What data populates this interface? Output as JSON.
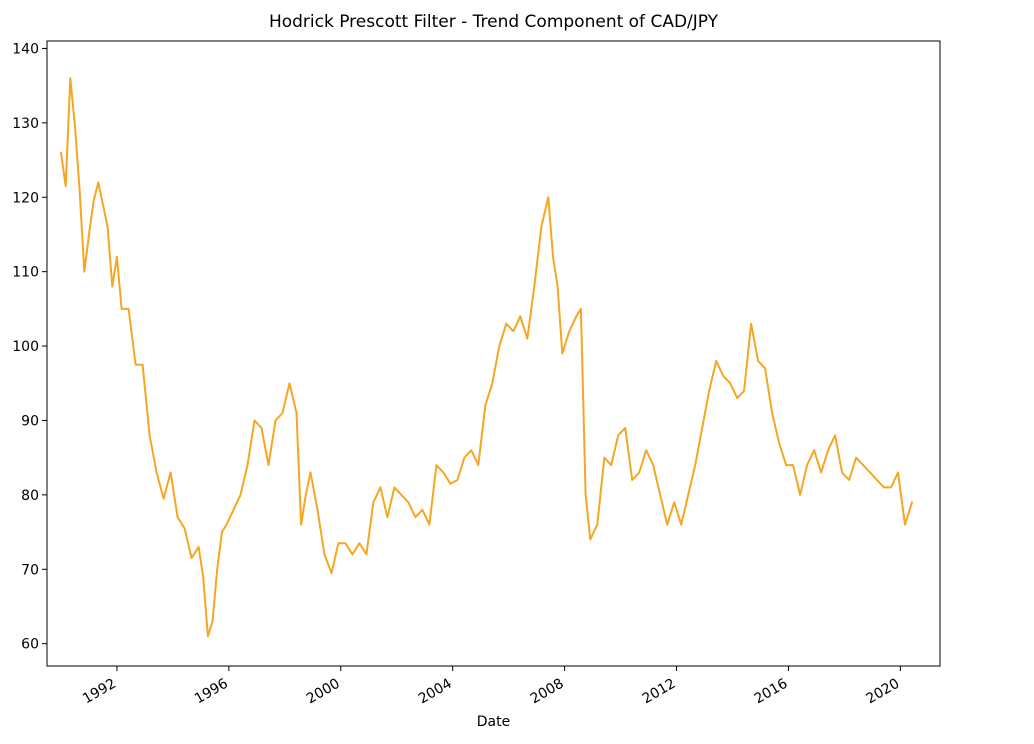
{
  "chart_data": {
    "type": "line",
    "title": "Hodrick Prescott Filter - Trend Component of CAD/JPY",
    "xlabel": "Date",
    "ylabel": "",
    "grid": false,
    "ylim": [
      57,
      141
    ],
    "xlim": [
      "1989-07-01",
      "2021-06-01"
    ],
    "yticks": [
      60,
      70,
      80,
      90,
      100,
      110,
      120,
      130,
      140
    ],
    "xticks": [
      "1992",
      "1996",
      "2000",
      "2004",
      "2008",
      "2012",
      "2016",
      "2020"
    ],
    "series": [
      {
        "color": "#f5a623",
        "x": [
          "1990-01",
          "1990-03",
          "1990-05",
          "1990-07",
          "1990-09",
          "1990-11",
          "1991-01",
          "1991-03",
          "1991-05",
          "1991-07",
          "1991-09",
          "1991-11",
          "1992-01",
          "1992-03",
          "1992-06",
          "1992-09",
          "1992-12",
          "1993-03",
          "1993-06",
          "1993-09",
          "1993-12",
          "1994-03",
          "1994-06",
          "1994-09",
          "1994-12",
          "1995-02",
          "1995-04",
          "1995-06",
          "1995-08",
          "1995-10",
          "1995-12",
          "1996-03",
          "1996-06",
          "1996-09",
          "1996-12",
          "1997-03",
          "1997-06",
          "1997-09",
          "1997-12",
          "1998-03",
          "1998-06",
          "1998-08",
          "1998-10",
          "1998-12",
          "1999-03",
          "1999-06",
          "1999-09",
          "1999-12",
          "2000-03",
          "2000-06",
          "2000-09",
          "2000-12",
          "2001-03",
          "2001-06",
          "2001-09",
          "2001-12",
          "2002-03",
          "2002-06",
          "2002-09",
          "2002-12",
          "2003-03",
          "2003-06",
          "2003-09",
          "2003-12",
          "2004-03",
          "2004-06",
          "2004-09",
          "2004-12",
          "2005-03",
          "2005-06",
          "2005-09",
          "2005-12",
          "2006-03",
          "2006-06",
          "2006-09",
          "2006-12",
          "2007-03",
          "2007-06",
          "2007-08",
          "2007-10",
          "2007-12",
          "2008-03",
          "2008-06",
          "2008-08",
          "2008-10",
          "2008-12",
          "2009-03",
          "2009-06",
          "2009-09",
          "2009-12",
          "2010-03",
          "2010-06",
          "2010-09",
          "2010-12",
          "2011-03",
          "2011-06",
          "2011-09",
          "2011-12",
          "2012-03",
          "2012-06",
          "2012-09",
          "2012-12",
          "2013-03",
          "2013-06",
          "2013-09",
          "2013-12",
          "2014-03",
          "2014-06",
          "2014-09",
          "2014-12",
          "2015-03",
          "2015-06",
          "2015-09",
          "2015-12",
          "2016-03",
          "2016-06",
          "2016-09",
          "2016-12",
          "2017-03",
          "2017-06",
          "2017-09",
          "2017-12",
          "2018-03",
          "2018-06",
          "2018-09",
          "2018-12",
          "2019-03",
          "2019-06",
          "2019-09",
          "2019-12",
          "2020-03",
          "2020-06"
        ],
        "y": [
          126,
          121.5,
          136,
          129.5,
          121,
          110,
          115,
          119.5,
          122,
          119,
          116,
          108,
          112,
          105,
          105,
          97.5,
          97.5,
          88,
          83,
          79.5,
          83,
          77,
          75.5,
          71.5,
          73,
          69,
          61,
          63,
          70,
          75,
          76,
          78,
          80,
          84,
          90,
          89,
          84,
          90,
          91,
          95,
          91,
          76,
          80,
          83,
          78,
          72,
          69.5,
          73.5,
          73.5,
          72,
          73.5,
          72,
          79,
          81,
          77,
          81,
          80,
          79,
          77,
          78,
          76,
          84,
          83,
          81.5,
          82,
          85,
          86,
          84,
          92,
          95,
          100,
          103,
          102,
          104,
          101,
          108,
          116,
          120,
          112,
          108,
          99,
          102,
          104,
          105,
          80,
          74,
          76,
          85,
          84,
          88,
          89,
          82,
          83,
          86,
          84,
          80,
          76,
          79,
          76,
          80,
          84,
          89,
          94,
          98,
          96,
          95,
          93,
          94,
          103,
          98,
          97,
          91,
          87,
          84,
          84,
          80,
          84,
          86,
          83,
          86,
          88,
          83,
          82,
          85,
          84,
          83,
          82,
          81,
          81,
          83,
          76,
          79
        ]
      }
    ]
  }
}
